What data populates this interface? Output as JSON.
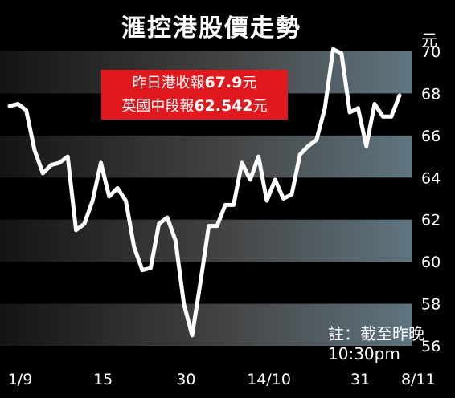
{
  "title": "滙控港股價走勢",
  "unit": "元",
  "price_box": {
    "hk_prefix": "昨日港收報",
    "hk_value": "67.9",
    "hk_suffix": "元",
    "uk_prefix": "英國中段報",
    "uk_value": "62.542",
    "uk_suffix": "元"
  },
  "note": "註：截至昨晚10:30pm",
  "chart_data": {
    "type": "line",
    "title": "滙控港股價走勢",
    "ylabel": "元",
    "ylim": [
      56,
      70
    ],
    "yticks": [
      56,
      58,
      60,
      62,
      64,
      66,
      68,
      70
    ],
    "xtick_labels": [
      "1/9",
      "15",
      "30",
      "14/10",
      "31",
      "8/11"
    ],
    "xtick_index": [
      0,
      10,
      20,
      30,
      41,
      48
    ],
    "series": [
      {
        "name": "",
        "values": [
          67.4,
          67.5,
          67.2,
          65.3,
          64.2,
          64.6,
          64.7,
          65.0,
          61.5,
          61.8,
          62.9,
          64.7,
          63.1,
          63.5,
          62.9,
          60.7,
          59.6,
          59.7,
          61.8,
          62.1,
          61.0,
          58.0,
          56.5,
          59.0,
          61.7,
          61.7,
          62.7,
          62.7,
          64.7,
          63.9,
          65.0,
          62.9,
          63.9,
          63.0,
          63.2,
          65.1,
          65.5,
          65.8,
          67.3,
          70.1,
          69.9,
          67.1,
          67.3,
          65.5,
          67.5,
          66.9,
          66.9,
          67.9
        ]
      }
    ],
    "grid": "alternating horizontal bands",
    "annotation": "註：截至昨晚10:30pm"
  }
}
